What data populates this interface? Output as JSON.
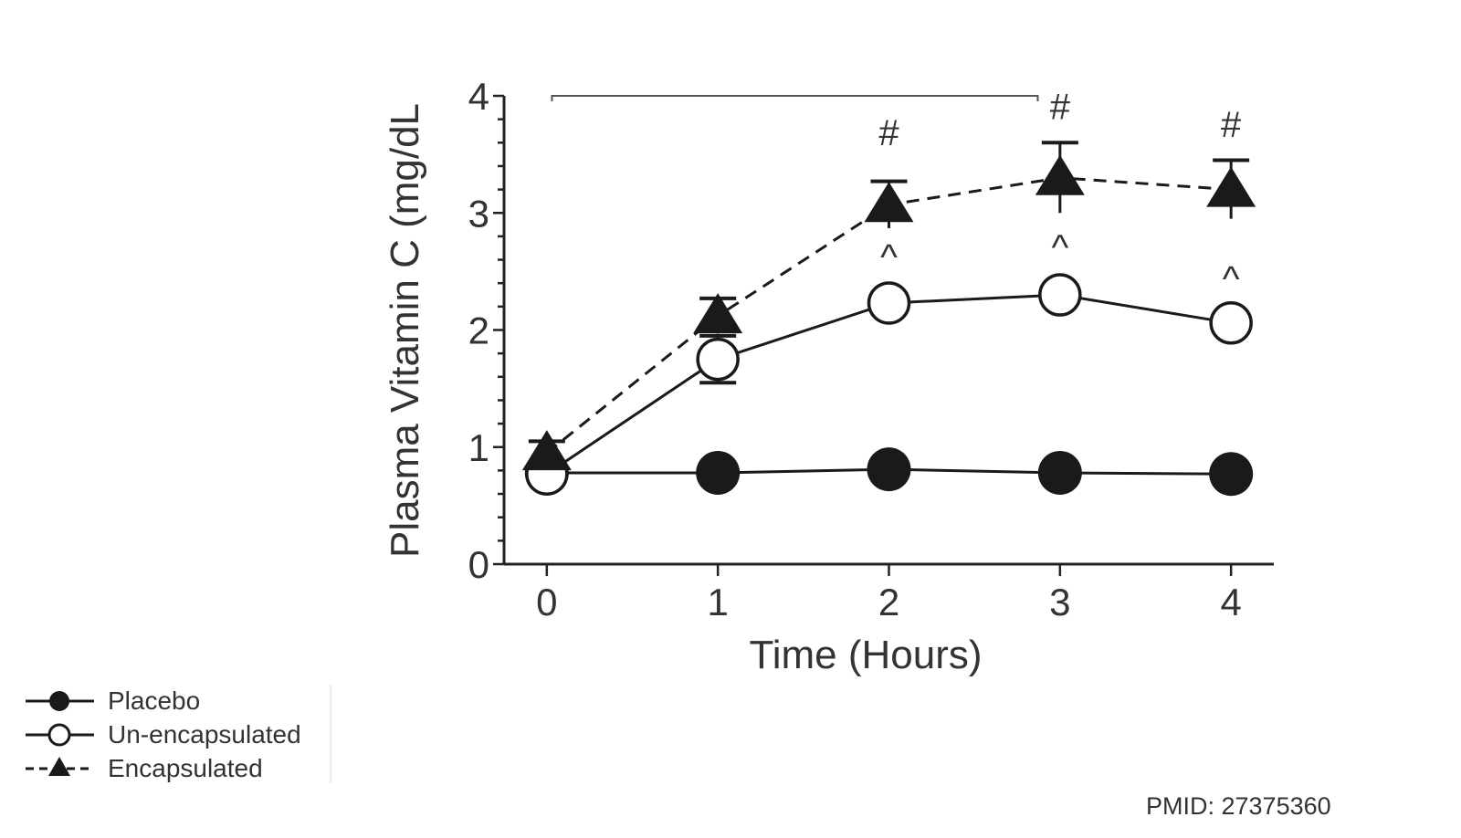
{
  "chart_data": {
    "type": "line",
    "xlabel": "Time (Hours)",
    "ylabel": "Plasma Vitamin C (mg/dL",
    "x": [
      0,
      1,
      2,
      3,
      4
    ],
    "xlim": [
      -0.25,
      4.25
    ],
    "ylim": [
      0,
      4
    ],
    "xticks": [
      "0",
      "1",
      "2",
      "3",
      "4"
    ],
    "yticks": [
      "0",
      "1",
      "2",
      "3",
      "4"
    ],
    "grid": false,
    "legend_position": "bottom-left",
    "series": [
      {
        "name": "Placebo",
        "marker": "filled-circle",
        "line": "solid",
        "values": [
          0.78,
          0.78,
          0.81,
          0.78,
          0.77
        ],
        "err": [
          0,
          0,
          0,
          0,
          0
        ]
      },
      {
        "name": "Un-encapsulated",
        "marker": "open-circle",
        "line": "solid",
        "values": [
          0.77,
          1.75,
          2.23,
          2.3,
          2.06
        ],
        "err": [
          0,
          0.2,
          0,
          0,
          0
        ]
      },
      {
        "name": "Encapsulated",
        "marker": "filled-triangle",
        "line": "dashed",
        "values": [
          0.95,
          2.12,
          3.07,
          3.3,
          3.2
        ],
        "err": [
          0.1,
          0.15,
          0.2,
          0.3,
          0.25
        ]
      }
    ],
    "annotations": [
      {
        "text": "#",
        "x": 2,
        "y": 3.58
      },
      {
        "text": "#",
        "x": 3,
        "y": 3.8
      },
      {
        "text": "#",
        "x": 4,
        "y": 3.65
      },
      {
        "text": "^",
        "x": 2,
        "y": 2.52
      },
      {
        "text": "^",
        "x": 3,
        "y": 2.6
      },
      {
        "text": "^",
        "x": 4,
        "y": 2.33
      }
    ],
    "bracket": {
      "x_start": 0.03,
      "x_end": 2.87,
      "y": 4
    }
  },
  "footer": {
    "pmid": "PMID: 27375360"
  },
  "colors": {
    "ink": "#1a1a1a",
    "axis": "#222222",
    "text": "#333333"
  }
}
